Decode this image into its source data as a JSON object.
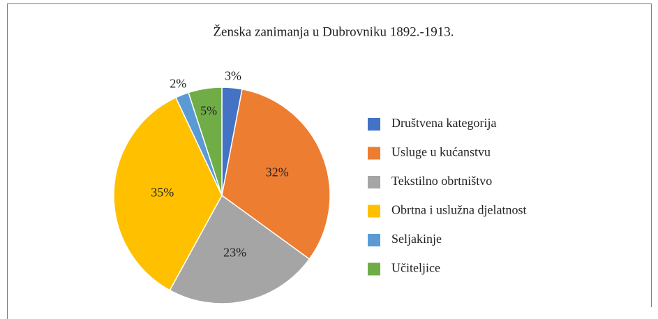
{
  "chart_data": {
    "type": "pie",
    "title": "Ženska zanimanja u Dubrovniku 1892.-1913.",
    "categories": [
      "Društvena kategorija",
      "Usluge u kućanstvu",
      "Tekstilno obrtništvo",
      "Obrtna i uslužna djelatnost",
      "Seljakinje",
      "Učiteljice"
    ],
    "values": [
      3,
      32,
      23,
      35,
      2,
      5
    ],
    "value_labels": [
      "3%",
      "32%",
      "23%",
      "35%",
      "2%",
      "5%"
    ],
    "colors": [
      "#4472c4",
      "#ed7d31",
      "#a5a5a5",
      "#ffc000",
      "#5b9bd5",
      "#70ad47"
    ],
    "legend": "right"
  }
}
